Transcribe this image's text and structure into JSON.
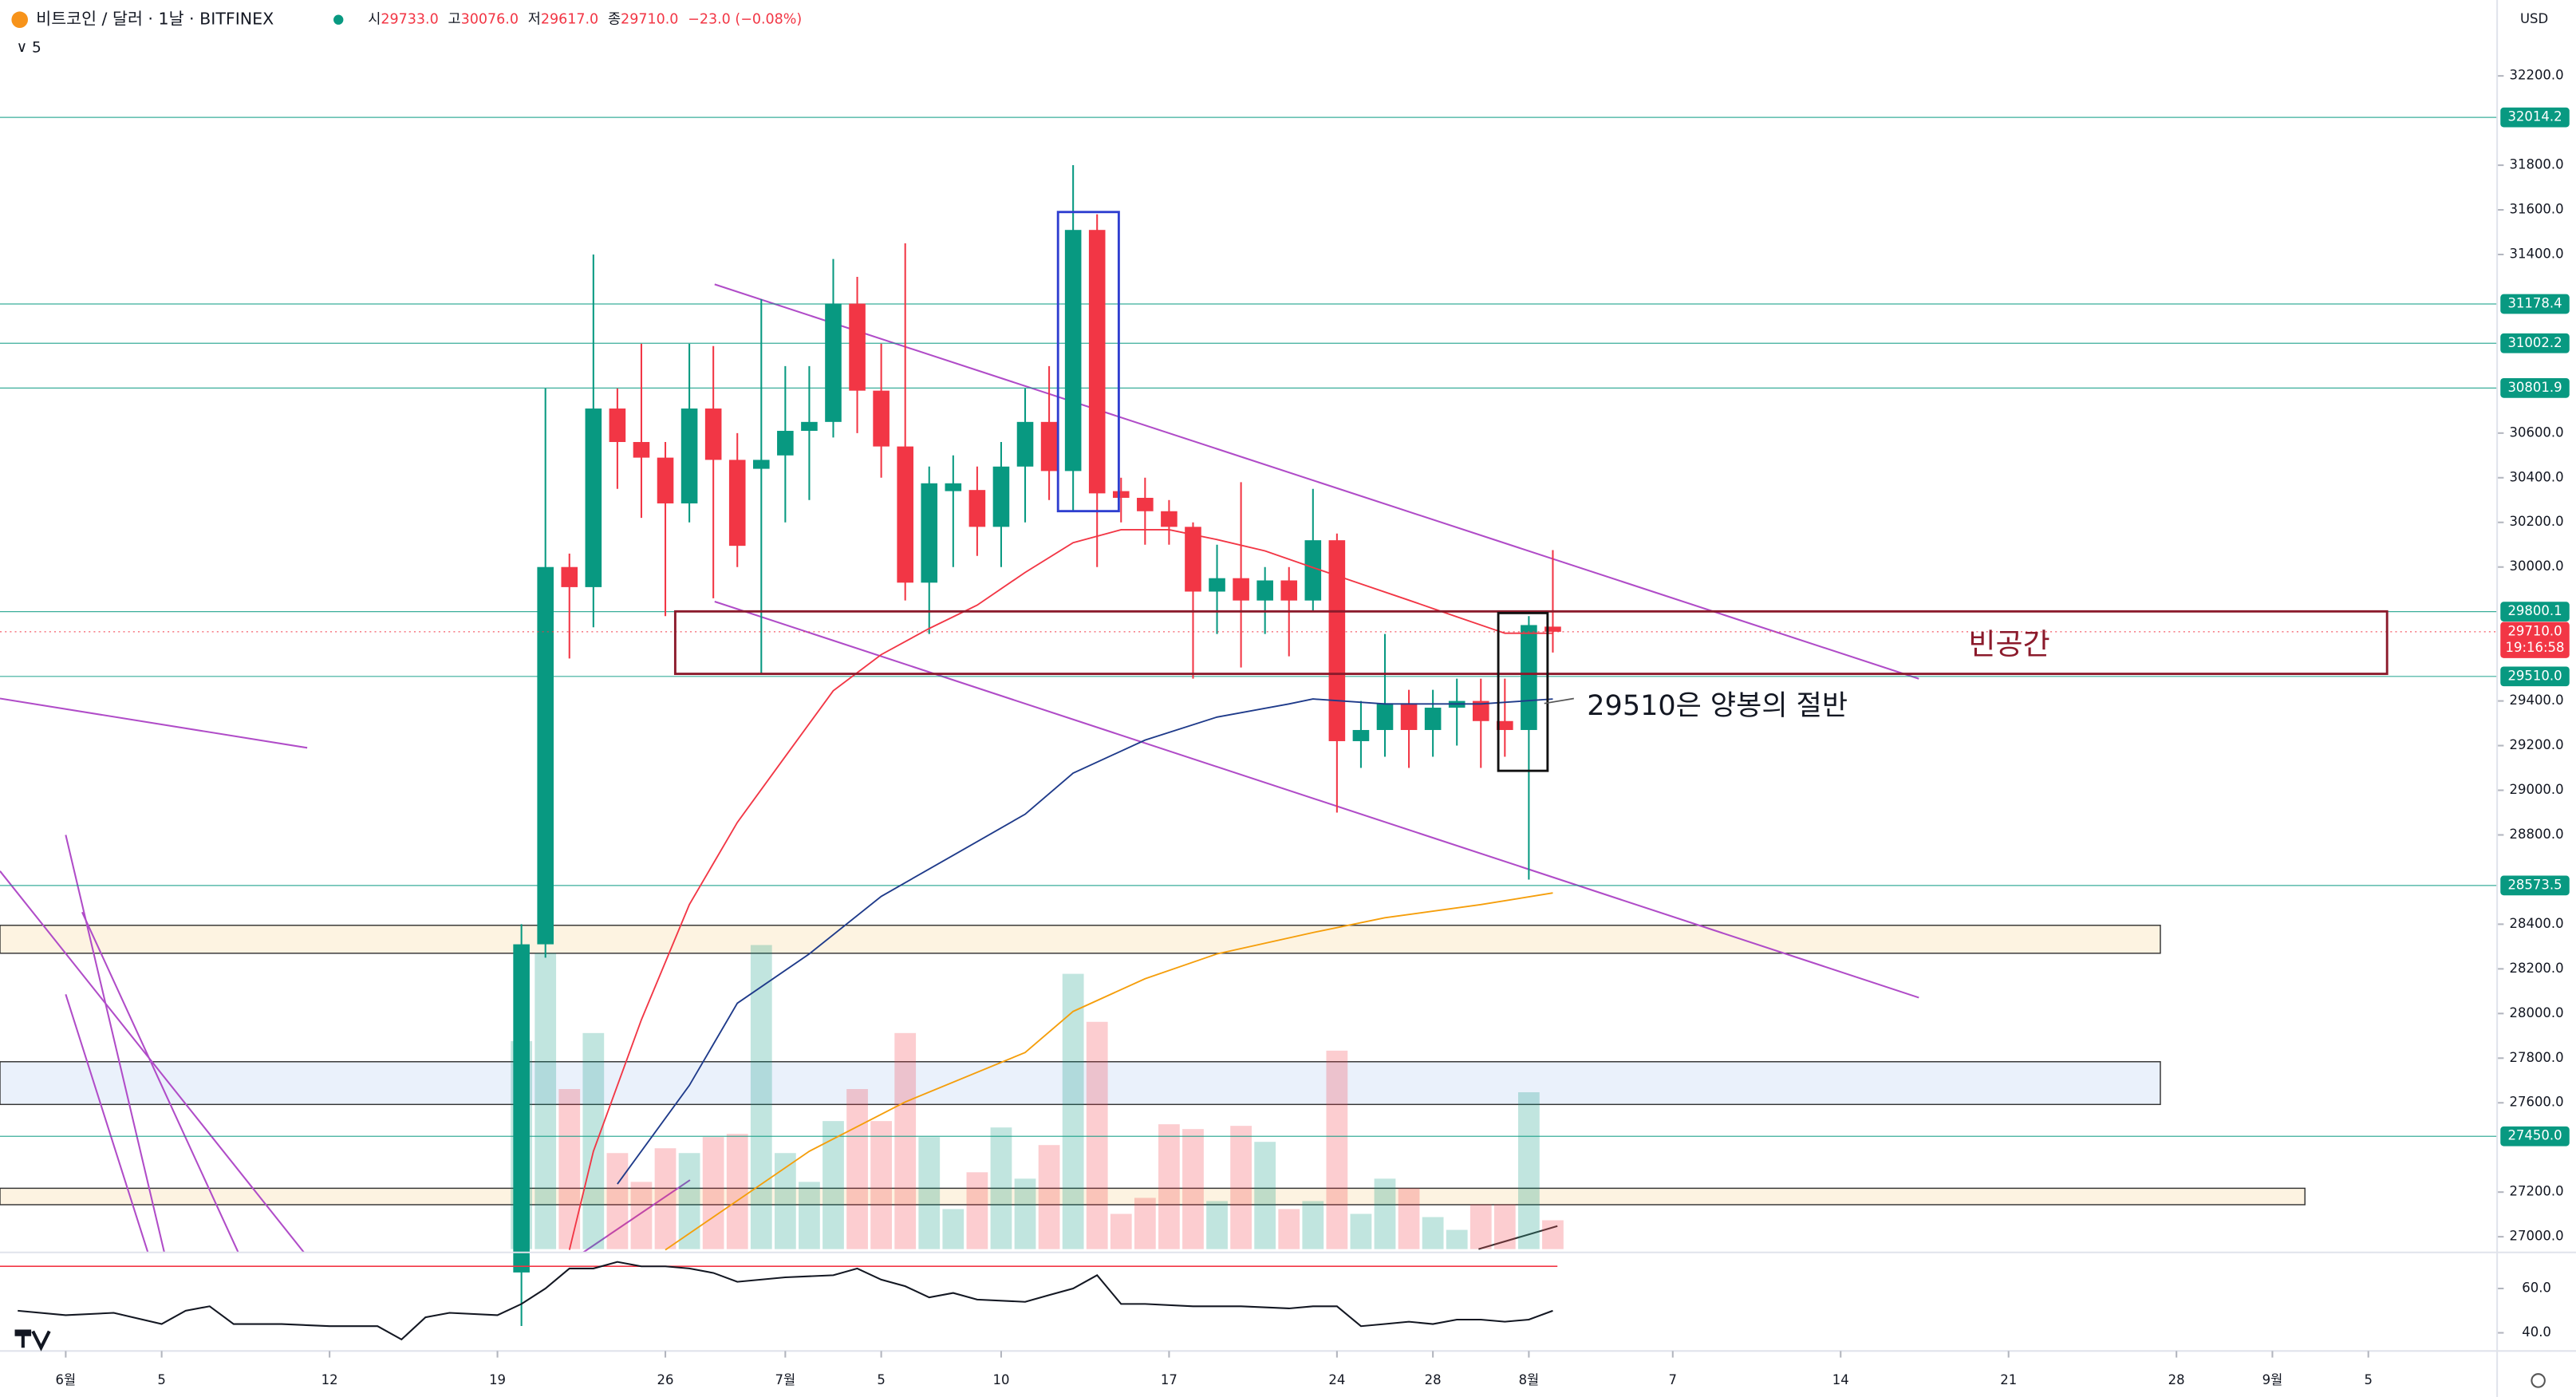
{
  "header": {
    "symbol": "비트코인 / 달러 · 1날 · BITFINEX",
    "ohlc": [
      {
        "label": "시",
        "value": "29733.0"
      },
      {
        "label": "고",
        "value": "30076.0"
      },
      {
        "label": "저",
        "value": "29617.0"
      },
      {
        "label": "종",
        "value": "29710.0"
      }
    ],
    "change": "−23.0 (−0.08%)",
    "indicator": "5",
    "currency": "USD"
  },
  "annotations": [
    "빈공간",
    "29510은 양봉의 절반"
  ],
  "chart_data": [
    {
      "type": "candlestick",
      "rise_color": "#089981",
      "fall_color": "#f23645",
      "xlim": [
        -2.74,
        101.37
      ],
      "ylim": [
        26930,
        32540
      ],
      "xticks": [
        {
          "value": 0,
          "label": "6월"
        },
        {
          "value": 4,
          "label": "5"
        },
        {
          "value": 11,
          "label": "12"
        },
        {
          "value": 18,
          "label": "19"
        },
        {
          "value": 25,
          "label": "26"
        },
        {
          "value": 30,
          "label": "7월"
        },
        {
          "value": 34,
          "label": "5"
        },
        {
          "value": 39,
          "label": "10"
        },
        {
          "value": 46,
          "label": "17"
        },
        {
          "value": 53,
          "label": "24"
        },
        {
          "value": 57,
          "label": "28"
        },
        {
          "value": 61,
          "label": "8월"
        },
        {
          "value": 67,
          "label": "7"
        },
        {
          "value": 74,
          "label": "14"
        },
        {
          "value": 81,
          "label": "21"
        },
        {
          "value": 88,
          "label": "28"
        },
        {
          "value": 92,
          "label": "9월"
        },
        {
          "value": 96,
          "label": "5"
        }
      ],
      "yticks": [
        {
          "value": 32200,
          "label": "32200.0"
        },
        {
          "value": 31800,
          "label": "31800.0"
        },
        {
          "value": 31600,
          "label": "31600.0"
        },
        {
          "value": 31400,
          "label": "31400.0"
        },
        {
          "value": 30600,
          "label": "30600.0"
        },
        {
          "value": 30400,
          "label": "30400.0"
        },
        {
          "value": 30200,
          "label": "30200.0"
        },
        {
          "value": 30000,
          "label": "30000.0"
        },
        {
          "value": 29400,
          "label": "29400.0"
        },
        {
          "value": 29200,
          "label": "29200.0"
        },
        {
          "value": 29000,
          "label": "29000.0"
        },
        {
          "value": 28800,
          "label": "28800.0"
        },
        {
          "value": 28400,
          "label": "28400.0"
        },
        {
          "value": 28200,
          "label": "28200.0"
        },
        {
          "value": 28000,
          "label": "28000.0"
        },
        {
          "value": 27800,
          "label": "27800.0"
        },
        {
          "value": 27600,
          "label": "27600.0"
        },
        {
          "value": 27200,
          "label": "27200.0"
        },
        {
          "value": 27000,
          "label": "27000.0"
        }
      ],
      "levels": [
        {
          "value": 32014.2,
          "label": "32014.2"
        },
        {
          "value": 31178.4,
          "label": "31178.4"
        },
        {
          "value": 31002.2,
          "label": "31002.2"
        },
        {
          "value": 30801.9,
          "label": "30801.9"
        },
        {
          "value": 29800.1,
          "label": "29800.1"
        },
        {
          "value": 29510,
          "label": "29510.0"
        },
        {
          "value": 28573.5,
          "label": "28573.5"
        },
        {
          "value": 27450,
          "label": "27450.0"
        }
      ],
      "level_color": "#089981",
      "last_price": {
        "value": 29710,
        "label": "29710.0",
        "countdown": "19:16:58"
      },
      "x": [
        19,
        20,
        21,
        22,
        23,
        24,
        25,
        26,
        27,
        28,
        29,
        30,
        31,
        32,
        33,
        34,
        35,
        36,
        37,
        38,
        39,
        40,
        41,
        42,
        43,
        44,
        45,
        46,
        47,
        48,
        49,
        50,
        51,
        52,
        53,
        54,
        55,
        56,
        57,
        58,
        59,
        60,
        61,
        62
      ],
      "open": [
        26840,
        28310,
        30000,
        29910,
        30710,
        30560,
        30490,
        30285,
        30710,
        30480,
        30440,
        30500,
        30610,
        30650,
        31180,
        30790,
        30540,
        29930,
        30340,
        30345,
        30180,
        30450,
        30650,
        30430,
        31510,
        30340,
        30310,
        30250,
        30180,
        29890,
        29950,
        29850,
        29940,
        29850,
        30120,
        29220,
        29270,
        29390,
        29270,
        29370,
        29400,
        29310,
        29270,
        29733
      ],
      "high": [
        28400,
        30800,
        30060,
        31400,
        30800,
        31000,
        30560,
        31000,
        30990,
        30600,
        31200,
        30900,
        30900,
        31380,
        31300,
        31000,
        31450,
        30450,
        30500,
        30450,
        30560,
        30800,
        30900,
        31800,
        31580,
        30400,
        30400,
        30300,
        30200,
        30100,
        30380,
        30000,
        30000,
        30350,
        30150,
        29400,
        29700,
        29450,
        29450,
        29500,
        29500,
        29500,
        29780,
        30076
      ],
      "low": [
        26600,
        28250,
        29590,
        29730,
        30350,
        30220,
        29780,
        30200,
        29860,
        30000,
        29520,
        30200,
        30300,
        30580,
        30600,
        30400,
        29850,
        29700,
        30000,
        30050,
        30000,
        30200,
        30300,
        30250,
        30000,
        30200,
        30100,
        30100,
        29500,
        29700,
        29550,
        29700,
        29600,
        29800,
        28900,
        29100,
        29150,
        29100,
        29150,
        29200,
        29100,
        29150,
        28600,
        29617
      ],
      "close": [
        28310,
        30000,
        29910,
        30710,
        30560,
        30490,
        30285,
        30710,
        30480,
        30095,
        30480,
        30610,
        30650,
        31180,
        30790,
        30540,
        29930,
        30375,
        30375,
        30180,
        30450,
        30650,
        30430,
        31510,
        30330,
        30310,
        30250,
        30180,
        29890,
        29950,
        29850,
        29940,
        29850,
        30120,
        29220,
        29270,
        29390,
        29270,
        29370,
        29400,
        29310,
        29270,
        29740,
        29710
      ],
      "volume": [
        130,
        185,
        100,
        135,
        60,
        42,
        63,
        60,
        70,
        72,
        190,
        60,
        42,
        80,
        100,
        80,
        135,
        70,
        25,
        48,
        76,
        44,
        65,
        172,
        142,
        22,
        32,
        78,
        75,
        30,
        77,
        67,
        25,
        30,
        124,
        22,
        44,
        38,
        20,
        12,
        28,
        28,
        98,
        18
      ],
      "series": [
        {
          "color": "#f23645",
          "x": [
            21,
            22,
            24,
            26,
            28,
            30,
            32,
            34,
            36,
            38,
            40,
            42,
            44,
            46,
            48,
            50,
            52,
            54,
            56,
            58,
            60,
            62
          ],
          "values": [
            26941,
            27383,
            27972,
            28488,
            28856,
            29151,
            29446,
            29608,
            29725,
            29829,
            29976,
            30109,
            30167,
            30167,
            30123,
            30072,
            29998,
            29924,
            29851,
            29777,
            29703,
            29703
          ]
        },
        {
          "color": "#1e3a8a",
          "x": [
            23,
            26,
            28,
            31,
            34,
            37,
            40,
            42,
            45,
            48,
            51,
            52,
            55,
            59,
            62
          ],
          "values": [
            27236,
            27678,
            28046,
            28267,
            28525,
            28709,
            28893,
            29077,
            29225,
            29328,
            29387,
            29409,
            29387,
            29387,
            29409
          ]
        },
        {
          "color": "#f59e0b",
          "x": [
            25,
            28,
            31,
            35,
            40,
            42,
            45,
            48,
            52,
            55,
            59,
            62
          ],
          "values": [
            26941,
            27162,
            27383,
            27604,
            27825,
            28009,
            28156,
            28267,
            28363,
            28429,
            28488,
            28540
          ]
        }
      ]
    },
    {
      "type": "line",
      "xlim": [
        -2.74,
        101.37
      ],
      "ylim": [
        31.8,
        76.3
      ],
      "yticks": [
        {
          "value": 60,
          "label": "60.0"
        },
        {
          "value": 40,
          "label": "40.0"
        }
      ],
      "band": 70,
      "band_color": "#f23645",
      "color": "#131722",
      "x": [
        -2,
        0,
        2,
        4,
        5,
        6,
        7,
        9,
        11,
        13,
        14,
        15,
        16,
        18,
        19,
        20,
        21,
        22,
        23,
        24,
        25,
        26,
        27,
        28,
        30,
        32,
        33,
        34,
        35,
        36,
        37,
        38,
        40,
        41,
        42,
        43,
        44,
        45,
        47,
        49,
        51,
        52,
        53,
        54,
        55,
        56,
        57,
        58,
        59,
        60,
        61,
        62
      ],
      "values": [
        50,
        48,
        49,
        44,
        50,
        52,
        44,
        44,
        43,
        43,
        37,
        47,
        49,
        48,
        53,
        60,
        69,
        69,
        72,
        70,
        70,
        69,
        67,
        63,
        65,
        66,
        69,
        64,
        61,
        56,
        58,
        55,
        54,
        57,
        60,
        66,
        53,
        53,
        52,
        52,
        51,
        52,
        52,
        43,
        44,
        45,
        44,
        46,
        46,
        45,
        46,
        50
      ]
    }
  ]
}
